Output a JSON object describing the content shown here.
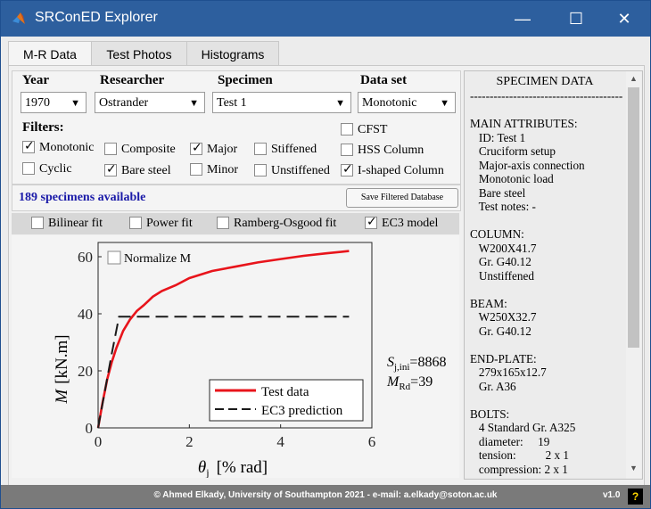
{
  "window": {
    "title": "SRConED Explorer"
  },
  "tabs": [
    {
      "label": "M-R Data"
    },
    {
      "label": "Test Photos"
    },
    {
      "label": "Histograms"
    }
  ],
  "filters": {
    "year": {
      "label": "Year",
      "value": "1970"
    },
    "researcher": {
      "label": "Researcher",
      "value": "Ostrander"
    },
    "specimen": {
      "label": "Specimen",
      "value": "Test 1"
    },
    "dataset": {
      "label": "Data set",
      "value": "Monotonic"
    },
    "filters_label": "Filters:",
    "checkboxes": [
      {
        "label": "Monotonic",
        "checked": true
      },
      {
        "label": "Cyclic",
        "checked": false
      },
      {
        "label": "Composite",
        "checked": false
      },
      {
        "label": "Bare steel",
        "checked": true
      },
      {
        "label": "Major",
        "checked": true
      },
      {
        "label": "Minor",
        "checked": false
      },
      {
        "label": "Stiffened",
        "checked": false
      },
      {
        "label": "Unstiffened",
        "checked": false
      },
      {
        "label": "CFST",
        "checked": false
      },
      {
        "label": "HSS Column",
        "checked": false
      },
      {
        "label": "I-shaped Column",
        "checked": true
      }
    ]
  },
  "status": {
    "available": "189 specimens available",
    "save_button": "Save Filtered Database"
  },
  "fit_options": [
    {
      "label": "Bilinear fit",
      "checked": false
    },
    {
      "label": "Power fit",
      "checked": false
    },
    {
      "label": "Ramberg-Osgood fit",
      "checked": false
    },
    {
      "label": "EC3 model",
      "checked": true
    }
  ],
  "plot": {
    "normalize_label": "Normalize M",
    "normalize_checked": false,
    "sj_label": "S",
    "sj_sub": "j,ini",
    "sj_value": "=8868",
    "mrd_label": "M",
    "mrd_sub": "Rd",
    "mrd_value": "=39"
  },
  "chart_data": {
    "type": "line",
    "xlabel_symbol": "θ",
    "xlabel_sub": "j",
    "xlabel_unit": "[% rad]",
    "ylabel_symbol": "M",
    "ylabel_unit": "[kN.m]",
    "xlim": [
      0,
      6
    ],
    "ylim": [
      0,
      65
    ],
    "xticks": [
      0,
      2,
      4,
      6
    ],
    "yticks": [
      0,
      20,
      40,
      60
    ],
    "legend_position": "bottom-right",
    "series": [
      {
        "name": "Test data",
        "color": "#e8141b",
        "dash": "solid",
        "x": [
          0,
          0.1,
          0.2,
          0.3,
          0.4,
          0.55,
          0.7,
          0.85,
          1.0,
          1.2,
          1.4,
          1.7,
          2.0,
          2.5,
          3.0,
          3.5,
          4.0,
          4.5,
          5.0,
          5.5
        ],
        "y": [
          0,
          9,
          17,
          23,
          28,
          34,
          38,
          41,
          43,
          46,
          48,
          50,
          52.5,
          55,
          56.5,
          58,
          59.2,
          60.3,
          61.2,
          62
        ]
      },
      {
        "name": "EC3 prediction",
        "color": "#1a1a1a",
        "dash": "dashed",
        "x": [
          0,
          0.3,
          0.46,
          5.5
        ],
        "y": [
          0,
          26,
          39,
          39
        ]
      }
    ]
  },
  "specimen_data": {
    "title": "SPECIMEN DATA",
    "lines": [
      "---------------------------------------",
      "",
      "MAIN ATTRIBUTES:",
      "   ID: Test 1",
      "   Cruciform setup",
      "   Major-axis connection",
      "   Monotonic load",
      "   Bare steel",
      "   Test notes: -",
      "",
      "COLUMN:",
      "   W200X41.7",
      "   Gr. G40.12",
      "   Unstiffened",
      "",
      "BEAM:",
      "   W250X32.7",
      "   Gr. G40.12",
      "",
      "END-PLATE:",
      "   279x165x12.7",
      "   Gr. A36",
      "",
      "BOLTS:",
      "   4 Standard Gr. A325",
      "   diameter:     19",
      "   tension:          2 x 1",
      "   compression: 2 x 1"
    ]
  },
  "footer": {
    "credit": "© Ahmed Elkady, University of Southampton 2021 - e-mail: a.elkady@soton.ac.uk",
    "version": "v1.0",
    "help": "?"
  }
}
